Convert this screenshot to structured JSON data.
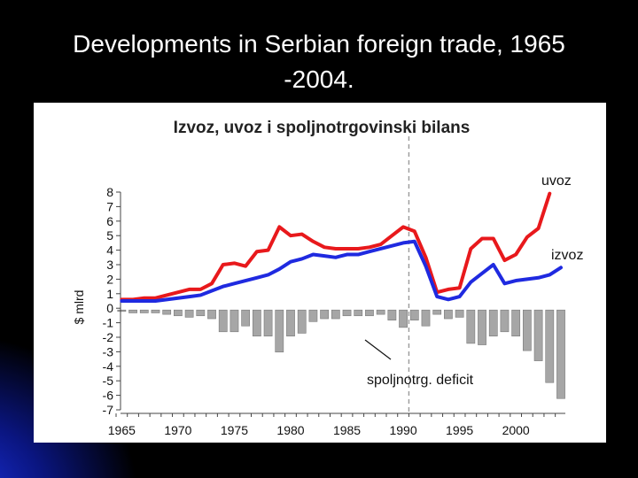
{
  "slide": {
    "title_line1": "Developments in Serbian foreign trade, 1965",
    "title_line2": "-2004."
  },
  "chart_data": {
    "type": "line",
    "title": "Izvoz, uvoz i spoljnotrgovinski bilans",
    "ylabel": "$ mlrd",
    "ylim": [
      -7,
      8
    ],
    "yticks": [
      8,
      7,
      6,
      5,
      4,
      3,
      2,
      1,
      0,
      -1,
      -2,
      -3,
      -4,
      -5,
      -6,
      -7
    ],
    "xlim": [
      1965,
      2004
    ],
    "xticks": [
      1965,
      1970,
      1975,
      1980,
      1985,
      1990,
      1995,
      2000
    ],
    "dashed_marker_year": 1991,
    "x": [
      1965,
      1966,
      1967,
      1968,
      1969,
      1970,
      1971,
      1972,
      1973,
      1974,
      1975,
      1976,
      1977,
      1978,
      1979,
      1980,
      1981,
      1982,
      1983,
      1984,
      1985,
      1986,
      1987,
      1988,
      1989,
      1990,
      1991,
      1992,
      1993,
      1994,
      1995,
      1996,
      1997,
      1998,
      1999,
      2000,
      2001,
      2002,
      2003,
      2004
    ],
    "series": [
      {
        "name": "uvoz",
        "type": "line",
        "color": "#e8191c",
        "values": [
          0.6,
          0.6,
          0.7,
          0.7,
          0.9,
          1.1,
          1.3,
          1.3,
          1.7,
          3.0,
          3.1,
          2.9,
          3.9,
          4.0,
          5.6,
          5.0,
          5.1,
          4.6,
          4.2,
          4.1,
          4.1,
          4.1,
          4.2,
          4.4,
          5.0,
          5.6,
          5.3,
          3.5,
          1.1,
          1.3,
          1.4,
          4.1,
          4.8,
          4.8,
          3.3,
          3.7,
          4.9,
          5.5,
          7.9,
          null
        ]
      },
      {
        "name": "izvoz",
        "type": "line",
        "color": "#1f2ae0",
        "values": [
          0.5,
          0.5,
          0.5,
          0.5,
          0.6,
          0.7,
          0.8,
          0.9,
          1.2,
          1.5,
          1.7,
          1.9,
          2.1,
          2.3,
          2.7,
          3.2,
          3.4,
          3.7,
          3.6,
          3.5,
          3.7,
          3.7,
          3.9,
          4.1,
          4.3,
          4.5,
          4.6,
          2.9,
          0.8,
          0.6,
          0.8,
          1.8,
          2.4,
          3.0,
          1.7,
          1.9,
          2.0,
          2.1,
          2.3,
          2.8
        ]
      },
      {
        "name": "spoljnotrg. deficit",
        "type": "bar",
        "color": "#a6a6a6",
        "values": [
          -0.1,
          -0.2,
          -0.2,
          -0.2,
          -0.3,
          -0.4,
          -0.5,
          -0.4,
          -0.6,
          -1.5,
          -1.5,
          -1.1,
          -1.8,
          -1.8,
          -2.9,
          -1.8,
          -1.6,
          -0.8,
          -0.6,
          -0.6,
          -0.4,
          -0.4,
          -0.4,
          -0.3,
          -0.7,
          -1.2,
          -0.7,
          -1.1,
          -0.3,
          -0.6,
          -0.5,
          -2.3,
          -2.4,
          -1.8,
          -1.5,
          -1.8,
          -2.8,
          -3.5,
          -5.0,
          -6.1
        ]
      }
    ],
    "annotations": {
      "uvoz": "uvoz",
      "izvoz": "izvoz",
      "deficit": "spoljnotrg. deficit"
    }
  }
}
